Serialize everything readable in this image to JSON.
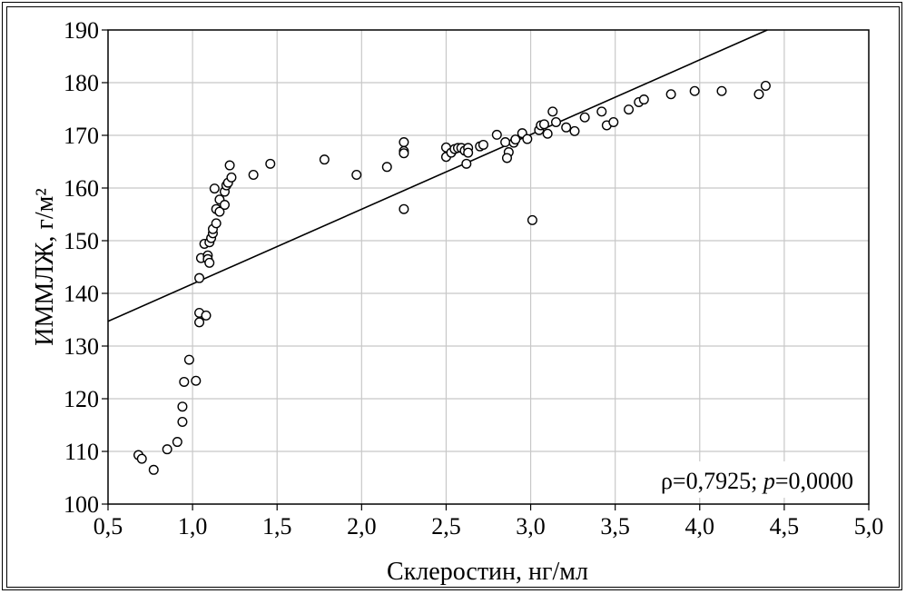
{
  "chart_data": {
    "type": "scatter",
    "title": "",
    "xlabel": "Склеростин, нг/мл",
    "ylabel": "ИММЛЖ, г/м²",
    "xlim": [
      0.5,
      5.0
    ],
    "ylim": [
      100,
      190
    ],
    "x_ticks": [
      "0,5",
      "1,0",
      "1,5",
      "2,0",
      "2,5",
      "3,0",
      "3,5",
      "4,0",
      "4,5",
      "5,0"
    ],
    "y_ticks": [
      "100",
      "110",
      "120",
      "130",
      "140",
      "150",
      "160",
      "170",
      "180",
      "190"
    ],
    "grid": true,
    "annotation": "ρ=0,7925; p=0,0000",
    "regression_line": {
      "points": [
        [
          0.5,
          134.7
        ],
        [
          4.4,
          190.0
        ]
      ]
    },
    "points": [
      [
        0.68,
        109.3
      ],
      [
        0.7,
        108.6
      ],
      [
        0.77,
        106.5
      ],
      [
        0.85,
        110.4
      ],
      [
        0.91,
        111.8
      ],
      [
        0.94,
        115.6
      ],
      [
        0.94,
        118.5
      ],
      [
        0.95,
        123.2
      ],
      [
        0.98,
        127.4
      ],
      [
        1.02,
        123.4
      ],
      [
        1.04,
        134.5
      ],
      [
        1.04,
        136.3
      ],
      [
        1.08,
        135.8
      ],
      [
        1.04,
        142.9
      ],
      [
        1.05,
        146.7
      ],
      [
        1.09,
        147.2
      ],
      [
        1.09,
        146.5
      ],
      [
        1.1,
        145.8
      ],
      [
        1.07,
        149.4
      ],
      [
        1.1,
        149.7
      ],
      [
        1.11,
        150.5
      ],
      [
        1.12,
        151.4
      ],
      [
        1.12,
        152.2
      ],
      [
        1.14,
        153.3
      ],
      [
        1.14,
        156.0
      ],
      [
        1.16,
        155.5
      ],
      [
        1.16,
        157.8
      ],
      [
        1.19,
        156.8
      ],
      [
        1.13,
        159.9
      ],
      [
        1.19,
        159.3
      ],
      [
        1.2,
        160.5
      ],
      [
        1.21,
        161.0
      ],
      [
        1.23,
        162.0
      ],
      [
        1.22,
        164.3
      ],
      [
        1.36,
        162.5
      ],
      [
        1.46,
        164.6
      ],
      [
        1.78,
        165.4
      ],
      [
        1.97,
        162.5
      ],
      [
        2.15,
        164.0
      ],
      [
        2.25,
        168.7
      ],
      [
        2.25,
        167.0
      ],
      [
        2.25,
        166.6
      ],
      [
        2.25,
        156.0
      ],
      [
        2.5,
        167.7
      ],
      [
        2.5,
        165.9
      ],
      [
        2.53,
        166.7
      ],
      [
        2.55,
        167.4
      ],
      [
        2.57,
        167.6
      ],
      [
        2.59,
        167.6
      ],
      [
        2.61,
        167.1
      ],
      [
        2.63,
        167.6
      ],
      [
        2.63,
        166.7
      ],
      [
        2.62,
        164.6
      ],
      [
        2.7,
        167.9
      ],
      [
        2.72,
        168.2
      ],
      [
        2.8,
        170.1
      ],
      [
        2.85,
        168.7
      ],
      [
        2.87,
        166.8
      ],
      [
        2.86,
        165.7
      ],
      [
        2.9,
        168.6
      ],
      [
        2.91,
        169.2
      ],
      [
        2.95,
        170.4
      ],
      [
        2.98,
        169.3
      ],
      [
        3.01,
        153.9
      ],
      [
        3.05,
        171.0
      ],
      [
        3.06,
        171.9
      ],
      [
        3.08,
        172.1
      ],
      [
        3.1,
        170.3
      ],
      [
        3.13,
        174.5
      ],
      [
        3.15,
        172.5
      ],
      [
        3.21,
        171.5
      ],
      [
        3.26,
        170.8
      ],
      [
        3.32,
        173.4
      ],
      [
        3.42,
        174.5
      ],
      [
        3.45,
        171.9
      ],
      [
        3.49,
        172.5
      ],
      [
        3.58,
        174.9
      ],
      [
        3.64,
        176.3
      ],
      [
        3.67,
        176.8
      ],
      [
        3.83,
        177.8
      ],
      [
        3.97,
        178.4
      ],
      [
        4.13,
        178.4
      ],
      [
        4.35,
        177.8
      ],
      [
        4.39,
        179.4
      ]
    ]
  }
}
